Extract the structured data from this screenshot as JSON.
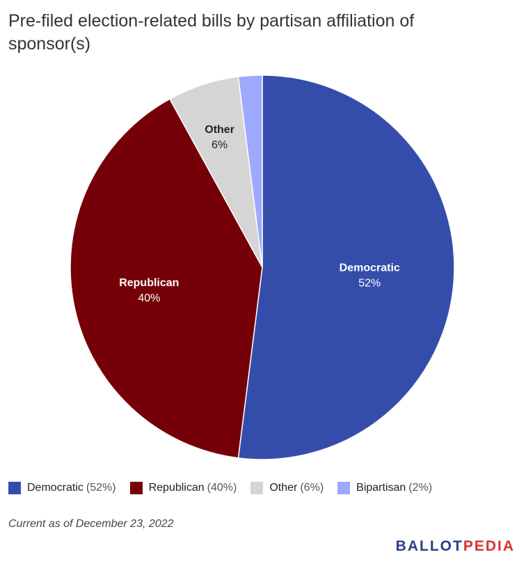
{
  "title": "Pre-filed election-related bills by partisan affiliation of sponsor(s)",
  "chart_data": {
    "type": "pie",
    "title": "Pre-filed election-related bills by partisan affiliation of sponsor(s)",
    "slices": [
      {
        "label": "Democratic",
        "value": 52,
        "pct_label": "52%",
        "legend_pct": "(52%)",
        "color": "#354daa",
        "label_color": "#ffffff"
      },
      {
        "label": "Republican",
        "value": 40,
        "pct_label": "40%",
        "legend_pct": "(40%)",
        "color": "#760008",
        "label_color": "#ffffff"
      },
      {
        "label": "Other",
        "value": 6,
        "pct_label": "6%",
        "legend_pct": "(6%)",
        "color": "#d5d5d5",
        "label_color": "#222222"
      },
      {
        "label": "Bipartisan",
        "value": 2,
        "pct_label": "",
        "legend_pct": "(2%)",
        "color": "#9ea8fc",
        "label_color": "#222222"
      }
    ],
    "legend_position": "bottom-left"
  },
  "footnote": "Current as of December 23, 2022",
  "logo": {
    "part1": "BALLOT",
    "part2": "PEDIA"
  }
}
